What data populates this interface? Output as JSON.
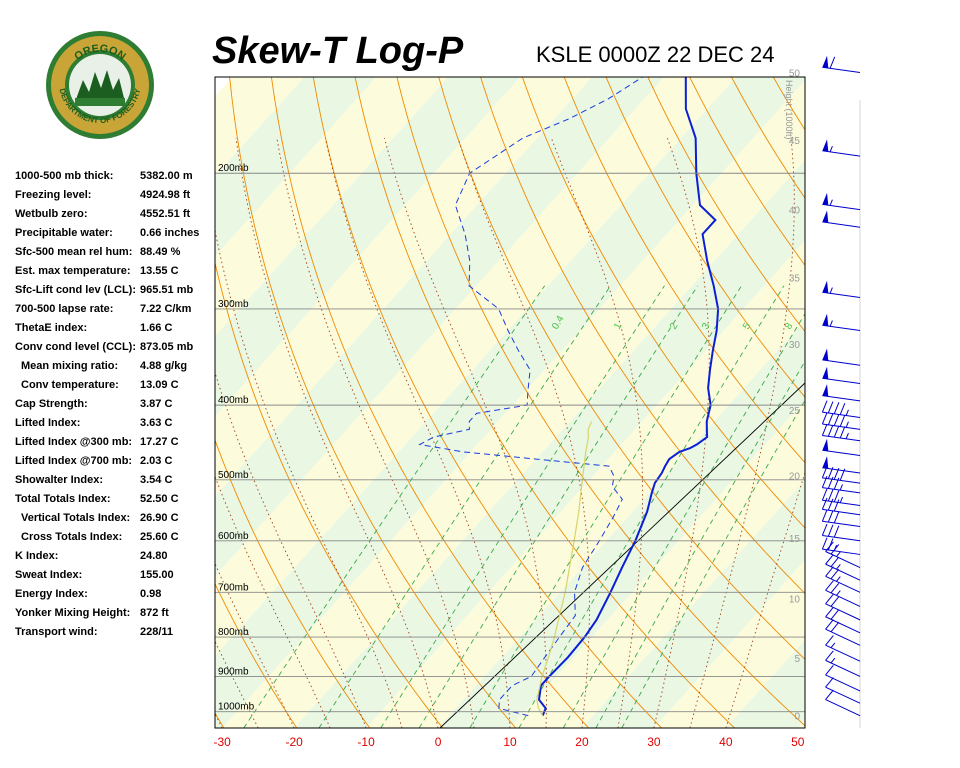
{
  "header": {
    "title": "Skew-T Log-P",
    "station": "KSLE 0000Z 22 DEC 24"
  },
  "logo": {
    "text_top": "OREGON",
    "text_bottom": "DEPARTMENT OF FORESTRY"
  },
  "indices": [
    {
      "label": "1000-500 mb thick:",
      "value": "5382.00 m"
    },
    {
      "label": "Freezing level:",
      "value": "4924.98 ft"
    },
    {
      "label": "Wetbulb zero:",
      "value": "4552.51 ft"
    },
    {
      "label": "Precipitable water:",
      "value": "0.66 inches"
    },
    {
      "label": "Sfc-500 mean rel hum:",
      "value": "88.49 %"
    },
    {
      "label": "Est. max temperature:",
      "value": "13.55 C"
    },
    {
      "label": "Sfc-Lift cond lev (LCL):",
      "value": "965.51 mb"
    },
    {
      "label": "700-500 lapse rate:",
      "value": "7.22 C/km"
    },
    {
      "label": "ThetaE index:",
      "value": "1.66 C"
    },
    {
      "label": "Conv cond level (CCL):",
      "value": "873.05 mb"
    },
    {
      "label": "Mean mixing ratio:",
      "value": "4.88 g/kg",
      "indent": true
    },
    {
      "label": "Conv temperature:",
      "value": "13.09 C",
      "indent": true
    },
    {
      "label": "Cap Strength:",
      "value": "3.87 C"
    },
    {
      "label": "Lifted Index:",
      "value": "3.63 C"
    },
    {
      "label": "Lifted Index @300 mb:",
      "value": "17.27 C"
    },
    {
      "label": "Lifted Index @700 mb:",
      "value": "2.03 C"
    },
    {
      "label": "Showalter Index:",
      "value": "3.54 C"
    },
    {
      "label": "Total Totals Index:",
      "value": "52.50 C"
    },
    {
      "label": "Vertical Totals Index:",
      "value": "26.90 C",
      "indent": true
    },
    {
      "label": "Cross Totals Index:",
      "value": "25.60 C",
      "indent": true
    },
    {
      "label": "K Index:",
      "value": "24.80"
    },
    {
      "label": "Sweat Index:",
      "value": "155.00"
    },
    {
      "label": "Energy Index:",
      "value": "0.98"
    },
    {
      "label": "Yonker Mixing Height:",
      "value": "872 ft"
    },
    {
      "label": "Transport wind:",
      "value": "228/11"
    }
  ],
  "chart_data": {
    "type": "line",
    "x_ticks": [
      "-30",
      "-20",
      "-10",
      "0",
      "10",
      "20",
      "30",
      "40",
      "50"
    ],
    "xlim": [
      -31,
      51
    ],
    "plim": [
      1050,
      150
    ],
    "pressure_labels": [
      {
        "p": 200,
        "label": "200mb"
      },
      {
        "p": 300,
        "label": "300mb"
      },
      {
        "p": 400,
        "label": "400mb"
      },
      {
        "p": 500,
        "label": "500mb"
      },
      {
        "p": 600,
        "label": "600mb"
      },
      {
        "p": 700,
        "label": "700mb"
      },
      {
        "p": 800,
        "label": "800mb"
      },
      {
        "p": 900,
        "label": "900mb"
      },
      {
        "p": 1000,
        "label": "1000mb"
      }
    ],
    "height_axis": {
      "label": "Height (1000ft)",
      "ticks": [
        {
          "p": 1012,
          "label": "0"
        },
        {
          "p": 852,
          "label": "5"
        },
        {
          "p": 713,
          "label": "10"
        },
        {
          "p": 595,
          "label": "15"
        },
        {
          "p": 494,
          "label": "20"
        },
        {
          "p": 406,
          "label": "25"
        },
        {
          "p": 333,
          "label": "30"
        },
        {
          "p": 273,
          "label": "35"
        },
        {
          "p": 223,
          "label": "40"
        },
        {
          "p": 181,
          "label": "45"
        },
        {
          "p": 148,
          "label": "50"
        }
      ]
    },
    "mixing_ratio_labels": [
      "0.4",
      "1",
      "2",
      "3",
      "5",
      "8"
    ],
    "series": [
      {
        "role": "temperature",
        "color": "#0b1fd6",
        "points": [
          [
            1012,
            13
          ],
          [
            990,
            12.5
          ],
          [
            965,
            10.5
          ],
          [
            925,
            9
          ],
          [
            900,
            9
          ],
          [
            850,
            9.2
          ],
          [
            800,
            9
          ],
          [
            760,
            8.5
          ],
          [
            700,
            7
          ],
          [
            650,
            5.5
          ],
          [
            600,
            4
          ],
          [
            550,
            2
          ],
          [
            520,
            0.3
          ],
          [
            505,
            -0.5
          ],
          [
            490,
            -0.8
          ],
          [
            480,
            -1.2
          ],
          [
            470,
            -1.5
          ],
          [
            460,
            -1
          ],
          [
            455,
            0
          ],
          [
            450,
            0.5
          ],
          [
            440,
            1
          ],
          [
            430,
            0
          ],
          [
            420,
            -1
          ],
          [
            400,
            -2.5
          ],
          [
            380,
            -5
          ],
          [
            360,
            -7
          ],
          [
            340,
            -9
          ],
          [
            320,
            -11
          ],
          [
            300,
            -13.5
          ],
          [
            280,
            -17
          ],
          [
            260,
            -21
          ],
          [
            240,
            -25
          ],
          [
            230,
            -25
          ],
          [
            220,
            -29
          ],
          [
            200,
            -33.5
          ],
          [
            180,
            -38
          ],
          [
            165,
            -43
          ],
          [
            150,
            -47
          ]
        ]
      },
      {
        "role": "dewpoint",
        "color": "#1b3ae0",
        "points": [
          [
            1012,
            11
          ],
          [
            990,
            6
          ],
          [
            965,
            5
          ],
          [
            925,
            5
          ],
          [
            900,
            6.5
          ],
          [
            850,
            6
          ],
          [
            800,
            5.5
          ],
          [
            750,
            5
          ],
          [
            700,
            2
          ],
          [
            650,
            0
          ],
          [
            600,
            -1
          ],
          [
            560,
            -2
          ],
          [
            530,
            -3
          ],
          [
            510,
            -6
          ],
          [
            495,
            -7
          ],
          [
            480,
            -9
          ],
          [
            470,
            -20
          ],
          [
            460,
            -31
          ],
          [
            450,
            -38
          ],
          [
            440,
            -37
          ],
          [
            430,
            -33
          ],
          [
            420,
            -34
          ],
          [
            410,
            -34
          ],
          [
            400,
            -28
          ],
          [
            390,
            -29
          ],
          [
            380,
            -30
          ],
          [
            360,
            -32
          ],
          [
            340,
            -36
          ],
          [
            320,
            -40
          ],
          [
            300,
            -44
          ],
          [
            280,
            -51
          ],
          [
            260,
            -54
          ],
          [
            240,
            -58
          ],
          [
            220,
            -63
          ],
          [
            200,
            -65
          ],
          [
            180,
            -62
          ],
          [
            170,
            -58
          ],
          [
            160,
            -55
          ],
          [
            150,
            -53
          ]
        ]
      },
      {
        "role": "parcel",
        "color": "#d8d46a",
        "points": [
          [
            1012,
            13
          ],
          [
            990,
            11.5
          ],
          [
            965,
            10.2
          ],
          [
            900,
            8
          ],
          [
            850,
            6.5
          ],
          [
            800,
            4.8
          ],
          [
            750,
            2.8
          ],
          [
            700,
            0.7
          ],
          [
            650,
            -1.8
          ],
          [
            600,
            -4.5
          ],
          [
            550,
            -7.5
          ],
          [
            500,
            -11
          ],
          [
            460,
            -14
          ],
          [
            440,
            -15.5
          ],
          [
            430,
            -16.5
          ],
          [
            420,
            -17
          ]
        ]
      }
    ],
    "wind_barbs": [
      {
        "p": 148,
        "speed": 60
      },
      {
        "p": 190,
        "speed": 55
      },
      {
        "p": 223,
        "speed": 55
      },
      {
        "p": 235,
        "speed": 50
      },
      {
        "p": 290,
        "speed": 55
      },
      {
        "p": 320,
        "speed": 55
      },
      {
        "p": 355,
        "speed": 50
      },
      {
        "p": 375,
        "speed": 50
      },
      {
        "p": 395,
        "speed": 50
      },
      {
        "p": 415,
        "speed": 45
      },
      {
        "p": 430,
        "speed": 45
      },
      {
        "p": 445,
        "speed": 45
      },
      {
        "p": 465,
        "speed": 50
      },
      {
        "p": 490,
        "speed": 50
      },
      {
        "p": 505,
        "speed": 40
      },
      {
        "p": 520,
        "speed": 35
      },
      {
        "p": 540,
        "speed": 35
      },
      {
        "p": 555,
        "speed": 30
      },
      {
        "p": 575,
        "speed": 30
      },
      {
        "p": 600,
        "speed": 30
      },
      {
        "p": 625,
        "speed": 25
      },
      {
        "p": 650,
        "speed": 25
      },
      {
        "p": 675,
        "speed": 25
      },
      {
        "p": 700,
        "speed": 25
      },
      {
        "p": 730,
        "speed": 25
      },
      {
        "p": 760,
        "speed": 20
      },
      {
        "p": 790,
        "speed": 20
      },
      {
        "p": 820,
        "speed": 20
      },
      {
        "p": 860,
        "speed": 15
      },
      {
        "p": 900,
        "speed": 15
      },
      {
        "p": 940,
        "speed": 10
      },
      {
        "p": 975,
        "speed": 10
      },
      {
        "p": 1012,
        "speed": 10
      }
    ]
  }
}
